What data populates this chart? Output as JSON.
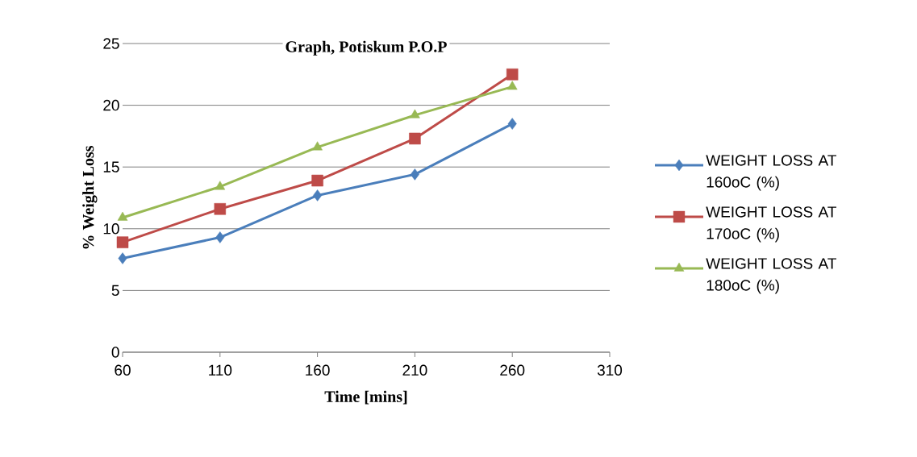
{
  "chart_data": {
    "type": "line",
    "title": "Graph, Potiskum P.O.P",
    "xlabel": "Time [mins]",
    "ylabel": "%  Weight Loss",
    "x": [
      60,
      110,
      160,
      210,
      260
    ],
    "series": [
      {
        "name": "WEIGHT LOSS AT 160oC (%)",
        "color": "#4a7ebb",
        "marker": "diamond",
        "values": [
          7.6,
          9.3,
          12.7,
          14.4,
          18.5
        ]
      },
      {
        "name": "WEIGHT LOSS AT 170oC (%)",
        "color": "#be4b48",
        "marker": "square",
        "values": [
          8.9,
          11.6,
          13.9,
          17.3,
          22.5
        ]
      },
      {
        "name": "WEIGHT LOSS AT 180oC (%)",
        "color": "#98b954",
        "marker": "triangle",
        "values": [
          10.9,
          13.4,
          16.6,
          19.2,
          21.5
        ]
      }
    ],
    "xlim": [
      60,
      310
    ],
    "xticks": [
      60,
      110,
      160,
      210,
      260,
      310
    ],
    "ylim": [
      0,
      25
    ],
    "yticks": [
      0,
      5,
      10,
      15,
      20,
      25
    ],
    "grid": "y",
    "legend": "right",
    "line_style": "solid"
  }
}
